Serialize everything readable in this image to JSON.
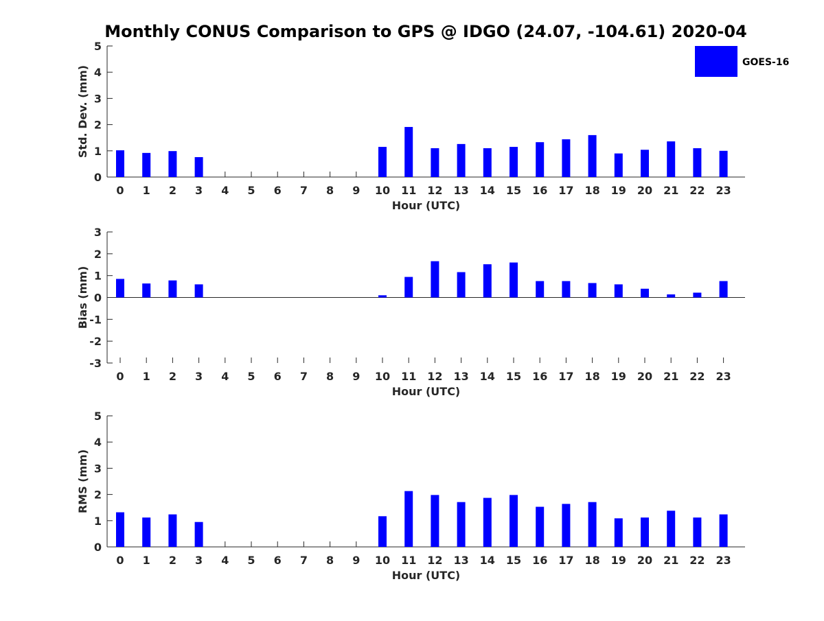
{
  "title": "Monthly CONUS Comparison to GPS @ IDGO (24.07, -104.61) 2020-04",
  "legend": {
    "label": "GOES-16",
    "color": "#0000ff"
  },
  "chart_data": [
    {
      "type": "bar",
      "xlabel": "Hour (UTC)",
      "ylabel": "Std. Dev. (mm)",
      "ylim": [
        0,
        5
      ],
      "yticks": [
        0,
        1,
        2,
        3,
        4,
        5
      ],
      "categories": [
        "0",
        "1",
        "2",
        "3",
        "4",
        "5",
        "6",
        "7",
        "8",
        "9",
        "10",
        "11",
        "12",
        "13",
        "14",
        "15",
        "16",
        "17",
        "18",
        "19",
        "20",
        "21",
        "22",
        "23"
      ],
      "series": [
        {
          "name": "GOES-16",
          "values": [
            1.02,
            0.92,
            0.99,
            0.76,
            null,
            null,
            null,
            null,
            null,
            null,
            1.15,
            1.91,
            1.1,
            1.26,
            1.1,
            1.15,
            1.33,
            1.44,
            1.6,
            0.9,
            1.04,
            1.36,
            1.1,
            1.0
          ]
        }
      ]
    },
    {
      "type": "bar",
      "xlabel": "Hour (UTC)",
      "ylabel": "Bias (mm)",
      "ylim": [
        -3,
        3
      ],
      "yticks": [
        -3,
        -2,
        -1,
        0,
        1,
        2,
        3
      ],
      "categories": [
        "0",
        "1",
        "2",
        "3",
        "4",
        "5",
        "6",
        "7",
        "8",
        "9",
        "10",
        "11",
        "12",
        "13",
        "14",
        "15",
        "16",
        "17",
        "18",
        "19",
        "20",
        "21",
        "22",
        "23"
      ],
      "series": [
        {
          "name": "GOES-16",
          "values": [
            0.85,
            0.64,
            0.78,
            0.6,
            null,
            null,
            null,
            null,
            null,
            null,
            0.1,
            0.94,
            1.66,
            1.16,
            1.52,
            1.6,
            0.75,
            0.75,
            0.66,
            0.6,
            0.4,
            0.14,
            0.22,
            0.75
          ]
        }
      ]
    },
    {
      "type": "bar",
      "xlabel": "Hour (UTC)",
      "ylabel": "RMS (mm)",
      "ylim": [
        0,
        5
      ],
      "yticks": [
        0,
        1,
        2,
        3,
        4,
        5
      ],
      "categories": [
        "0",
        "1",
        "2",
        "3",
        "4",
        "5",
        "6",
        "7",
        "8",
        "9",
        "10",
        "11",
        "12",
        "13",
        "14",
        "15",
        "16",
        "17",
        "18",
        "19",
        "20",
        "21",
        "22",
        "23"
      ],
      "series": [
        {
          "name": "GOES-16",
          "values": [
            1.32,
            1.12,
            1.24,
            0.95,
            null,
            null,
            null,
            null,
            null,
            null,
            1.17,
            2.13,
            1.98,
            1.71,
            1.87,
            1.98,
            1.53,
            1.64,
            1.71,
            1.09,
            1.12,
            1.38,
            1.12,
            1.24
          ]
        }
      ]
    }
  ]
}
